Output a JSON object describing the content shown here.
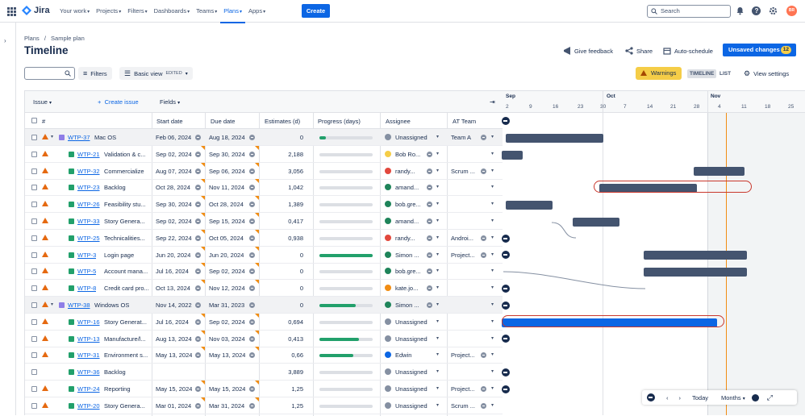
{
  "app": {
    "name": "Jira"
  },
  "nav": [
    {
      "label": "Your work"
    },
    {
      "label": "Projects"
    },
    {
      "label": "Filters"
    },
    {
      "label": "Dashboards"
    },
    {
      "label": "Teams"
    },
    {
      "label": "Plans"
    },
    {
      "label": "Apps"
    }
  ],
  "create_label": "Create",
  "search": {
    "placeholder": "Search"
  },
  "user_initials": "BR",
  "breadcrumb": [
    "Plans",
    "/",
    "Sample plan"
  ],
  "page_title": "Timeline",
  "header_actions": {
    "feedback": "Give feedback",
    "share": "Share",
    "autoschedule": "Auto-schedule",
    "unsaved": "Unsaved changes",
    "unsaved_count": "12"
  },
  "toolbar": {
    "filters": "Filters",
    "view": "Basic view",
    "view_badge": "EDITED",
    "warnings": "Warnings",
    "timeline": "TIMELINE",
    "list": "LIST",
    "view_settings": "View settings"
  },
  "table": {
    "issue_label": "Issue",
    "create_issue": "Create issue",
    "fields": "Fields",
    "columns": [
      "#",
      "Start date",
      "Due date",
      "Estimates (d)",
      "Progress (days)",
      "Assignee",
      "AT Team"
    ],
    "rows": [
      {
        "key": "WTP-37",
        "summary": "Mac OS",
        "type": "epic",
        "group": true,
        "start": "Feb 06, 2024",
        "due": "Aug 18, 2024",
        "est": "0",
        "progress": 0.12,
        "assignee": "Unassigned",
        "av": "#8590a2",
        "team": "Team A"
      },
      {
        "key": "WTP-21",
        "summary": "Validation & c...",
        "type": "story",
        "start": "Sep 02, 2024",
        "due": "Sep 30, 2024",
        "est": "2,188",
        "progress": 0,
        "assignee": "Bob Ro...",
        "av": "#f5cd47",
        "team": ""
      },
      {
        "key": "WTP-32",
        "summary": "Commercialize",
        "type": "story",
        "start": "Aug 07, 2024",
        "due": "Sep 06, 2024",
        "est": "3,056",
        "progress": 0,
        "assignee": "randy...",
        "av": "#e2483d",
        "team": "Scrum ..."
      },
      {
        "key": "WTP-23",
        "summary": "Backlog",
        "type": "story",
        "start": "Oct 28, 2024",
        "due": "Nov 11, 2024",
        "est": "1,042",
        "progress": 0,
        "assignee": "amand...",
        "av": "#1f845a",
        "team": ""
      },
      {
        "key": "WTP-26",
        "summary": "Feasibility stu...",
        "type": "story",
        "start": "Sep 30, 2024",
        "due": "Oct 28, 2024",
        "est": "1,389",
        "progress": 0,
        "assignee": "bob.gre...",
        "av": "#1f845a",
        "team": ""
      },
      {
        "key": "WTP-33",
        "summary": "Story Genera...",
        "type": "story",
        "start": "Sep 02, 2024",
        "due": "Sep 15, 2024",
        "est": "0,417",
        "progress": 0,
        "assignee": "amand...",
        "av": "#1f845a",
        "team": ""
      },
      {
        "key": "WTP-25",
        "summary": "Technicalities...",
        "type": "story",
        "start": "Sep 22, 2024",
        "due": "Oct 05, 2024",
        "est": "0,938",
        "progress": 0,
        "assignee": "randy...",
        "av": "#e2483d",
        "team": "Androi..."
      },
      {
        "key": "WTP-3",
        "summary": "Login page",
        "type": "story",
        "start": "Jun 20, 2024",
        "due": "Jun 20, 2024",
        "est": "0",
        "progress": 1.0,
        "assignee": "Simon ...",
        "av": "#1f845a",
        "team": "Project..."
      },
      {
        "key": "WTP-5",
        "summary": "Account mana...",
        "type": "story",
        "start": "Jul 16, 2024",
        "due": "Sep 02, 2024",
        "est": "0",
        "progress": 0,
        "assignee": "bob.gre...",
        "av": "#1f845a",
        "team": ""
      },
      {
        "key": "WTP-8",
        "summary": "Credit card pro...",
        "type": "story",
        "start": "Oct 13, 2024",
        "due": "Nov 12, 2024",
        "est": "0",
        "progress": 0,
        "assignee": "kate.jo...",
        "av": "#f18d13",
        "team": ""
      },
      {
        "key": "WTP-38",
        "summary": "Windows OS",
        "type": "epic",
        "group": true,
        "start": "Nov 14, 2022",
        "due": "Mar 31, 2023",
        "est": "0",
        "progress": 0.68,
        "assignee": "Simon ...",
        "av": "#1f845a",
        "team": ""
      },
      {
        "key": "WTP-16",
        "summary": "Story Generat...",
        "type": "story",
        "start": "Jul 16, 2024",
        "due": "Sep 02, 2024",
        "est": "0,694",
        "progress": 0,
        "assignee": "Unassigned",
        "av": "#8590a2",
        "team": ""
      },
      {
        "key": "WTP-13",
        "summary": "Manufacture/l...",
        "type": "story",
        "start": "Aug 13, 2024",
        "due": "Nov 03, 2024",
        "est": "0,413",
        "progress": 0.74,
        "assignee": "Unassigned",
        "av": "#8590a2",
        "team": ""
      },
      {
        "key": "WTP-31",
        "summary": "Environment s...",
        "type": "story",
        "start": "May 13, 2024",
        "due": "May 13, 2024",
        "est": "0,66",
        "progress": 0.63,
        "assignee": "Edwin",
        "av": "#0c66e4",
        "team": "Project..."
      },
      {
        "key": "WTP-36",
        "summary": "Backlog",
        "type": "story",
        "start": "",
        "due": "",
        "est": "3,889",
        "progress": 0,
        "assignee": "Unassigned",
        "av": "#8590a2",
        "team": ""
      },
      {
        "key": "WTP-24",
        "summary": "Reporting",
        "type": "story",
        "start": "May 15, 2024",
        "due": "May 15, 2024",
        "est": "1,25",
        "progress": 0,
        "assignee": "Unassigned",
        "av": "#8590a2",
        "team": "Project..."
      },
      {
        "key": "WTP-20",
        "summary": "Story Genera...",
        "type": "story",
        "start": "Mar 01, 2024",
        "due": "Mar 31, 2024",
        "est": "1,25",
        "progress": 0,
        "assignee": "Unassigned",
        "av": "#8590a2",
        "team": "Scrum ..."
      }
    ]
  },
  "timeline": {
    "months": [
      "Sep",
      "Oct",
      "Nov"
    ],
    "days": [
      "2",
      "9",
      "16",
      "23",
      "30",
      "7",
      "14",
      "21",
      "28",
      "4",
      "11",
      "18",
      "25"
    ]
  },
  "bottom_nav": {
    "today": "Today",
    "scale": "Months"
  }
}
